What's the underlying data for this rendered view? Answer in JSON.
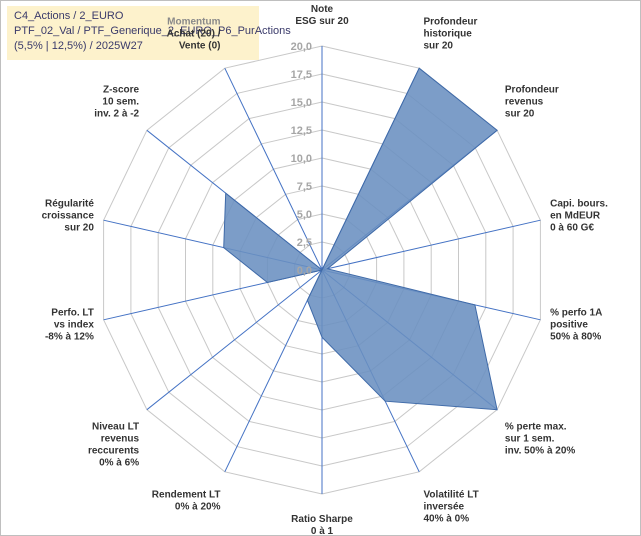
{
  "header": {
    "line1": "C4_Actions / 2_EURO",
    "line2": "PTF_02_Val / PTF_Generique_2_EURO_P6_PurActions",
    "line3": "(5,5% | 12,5%) / 2025W27"
  },
  "colors": {
    "fill": "#6a8fc0",
    "stroke": "#3f6aa8",
    "grid": "#c8c8c8",
    "spoke": "#4472c4",
    "header_bg": "#fdf2cc"
  },
  "chart_data": {
    "type": "radar",
    "title": "",
    "rlim": [
      0,
      20
    ],
    "ticks": [
      "0,0",
      "2,5",
      "5,0",
      "7,5",
      "10,0",
      "12,5",
      "15,0",
      "17,5",
      "20,0"
    ],
    "axes": [
      {
        "lines": [
          "Note",
          "ESG sur 20"
        ]
      },
      {
        "lines": [
          "Profondeur",
          "historique",
          "sur 20"
        ]
      },
      {
        "lines": [
          "Profondeur",
          "revenus",
          "sur 20"
        ]
      },
      {
        "lines": [
          "Capi. bours.",
          "en MdEUR",
          "0 à 60 G€"
        ]
      },
      {
        "lines": [
          "% perfo 1A",
          "positive",
          "50% à 80%"
        ]
      },
      {
        "lines": [
          "% perte max.",
          "sur 1 sem.",
          "inv. 50% à 20%"
        ]
      },
      {
        "lines": [
          "Volatilité LT",
          "inversée",
          "40% à 0%"
        ]
      },
      {
        "lines": [
          "Ratio Sharpe",
          "0 à 1"
        ]
      },
      {
        "lines": [
          "Rendement LT",
          "0% à 20%"
        ]
      },
      {
        "lines": [
          "Niveau LT",
          "revenus",
          "reccurents",
          "0% à 6%"
        ]
      },
      {
        "lines": [
          "Perfo. LT",
          "vs index",
          "-8% à 12%"
        ]
      },
      {
        "lines": [
          "Régularité",
          "croissance",
          "sur 20"
        ]
      },
      {
        "lines": [
          "Z-score",
          "10 sem.",
          "inv. 2 à -2"
        ]
      },
      {
        "lines": [
          "Momentum",
          "Achat (20) /",
          "Vente (0)"
        ],
        "first_line_grey": true
      }
    ],
    "series": [
      {
        "values": [
          0,
          20,
          20,
          0.5,
          14,
          20,
          13,
          6,
          3,
          0,
          5,
          9,
          11,
          0
        ]
      }
    ]
  }
}
